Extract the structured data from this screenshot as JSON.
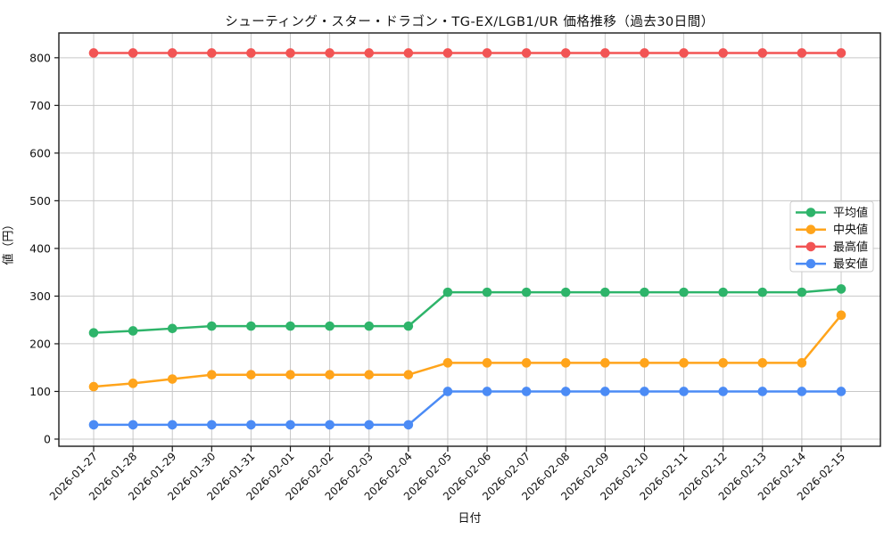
{
  "chart_data": {
    "type": "line",
    "title": "シューティング・スター・ドラゴン・TG-EX/LGB1/UR 価格推移（過去30日間）",
    "xlabel": "日付",
    "ylabel": "値（円）",
    "x": [
      "2026-01-27",
      "2026-01-28",
      "2026-01-29",
      "2026-01-30",
      "2026-01-31",
      "2026-02-01",
      "2026-02-02",
      "2026-02-03",
      "2026-02-04",
      "2026-02-05",
      "2026-02-06",
      "2026-02-07",
      "2026-02-08",
      "2026-02-09",
      "2026-02-10",
      "2026-02-11",
      "2026-02-12",
      "2026-02-13",
      "2026-02-14",
      "2026-02-15"
    ],
    "series": [
      {
        "name": "平均値",
        "id": "average",
        "color": "#2eb46a",
        "values": [
          223,
          227,
          232,
          237,
          237,
          237,
          237,
          237,
          237,
          308,
          308,
          308,
          308,
          308,
          308,
          308,
          308,
          308,
          308,
          315
        ]
      },
      {
        "name": "中央値",
        "id": "median",
        "color": "#ffa41b",
        "values": [
          110,
          117,
          126,
          135,
          135,
          135,
          135,
          135,
          135,
          160,
          160,
          160,
          160,
          160,
          160,
          160,
          160,
          160,
          160,
          260
        ]
      },
      {
        "name": "最高値",
        "id": "highest",
        "color": "#f25454",
        "values": [
          810,
          810,
          810,
          810,
          810,
          810,
          810,
          810,
          810,
          810,
          810,
          810,
          810,
          810,
          810,
          810,
          810,
          810,
          810,
          810
        ]
      },
      {
        "name": "最安値",
        "id": "lowest",
        "color": "#4b8bf5",
        "values": [
          30,
          30,
          30,
          30,
          30,
          30,
          30,
          30,
          30,
          100,
          100,
          100,
          100,
          100,
          100,
          100,
          100,
          100,
          100,
          100
        ]
      }
    ],
    "yticks": [
      0,
      100,
      200,
      300,
      400,
      500,
      600,
      700,
      800
    ],
    "ylim": [
      -15,
      852
    ],
    "grid": true,
    "grid_color": "#c8c8c8",
    "spine_color": "#1a1a1a",
    "legend_position": "right-middle",
    "background": "#ffffff"
  }
}
